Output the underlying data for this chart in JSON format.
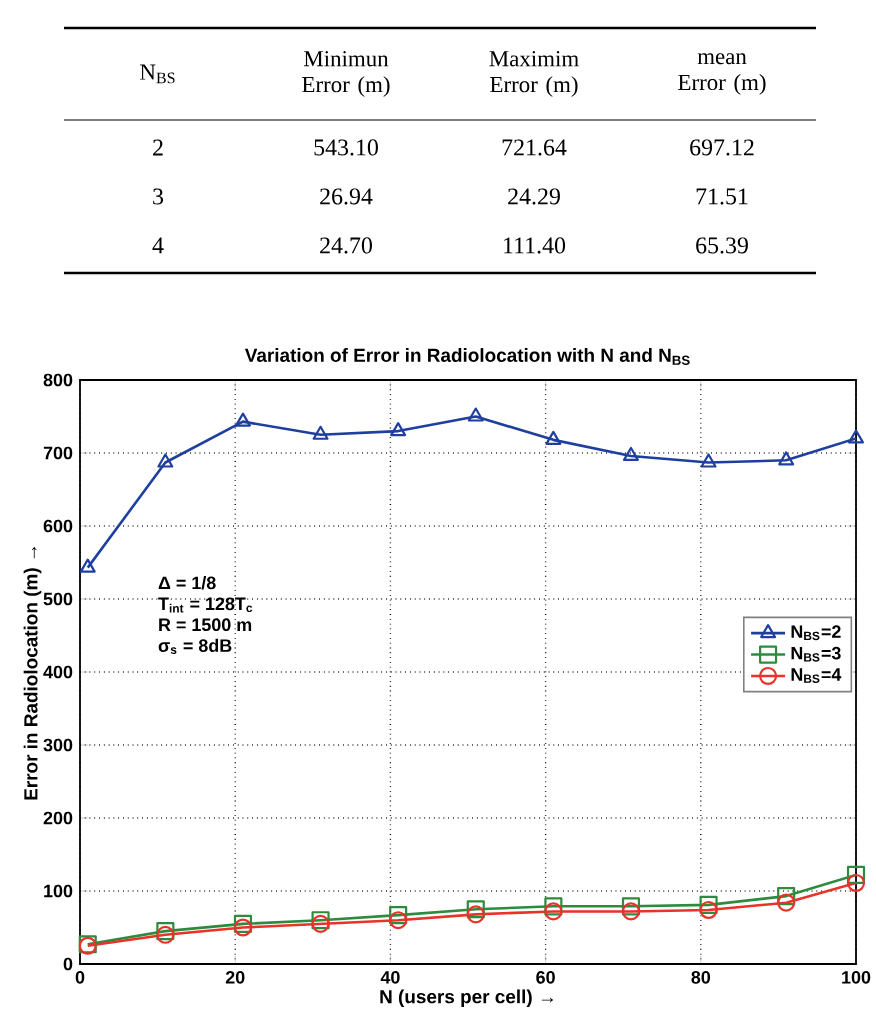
{
  "chart_data": [
    {
      "type": "other",
      "categories": [
        "N$_{BS}$",
        "Minimun Error (m)",
        "Maximim Error (m)",
        "mean Error (m)"
      ],
      "annotations": [
        "2",
        "543.10",
        "721.64",
        "697.12",
        "3",
        "26.94",
        "24.29",
        "71.51",
        "4",
        "24.70",
        "111.40",
        "65.39"
      ]
    },
    {
      "type": "line",
      "title": "Variation of Error in Radiolocation with N and N$_{BS}$",
      "xlabel": "N (users per cell) →",
      "ylabel": "Error in Radiolocation (m) →",
      "x": [
        1,
        11,
        21,
        31,
        41,
        51,
        61,
        71,
        81,
        91,
        100
      ],
      "series": [
        {
          "name": "N$_{BS}$=2",
          "color": "#1f3fa0",
          "marker": "triangle",
          "values": [
            543,
            687,
            743,
            725,
            730,
            750,
            718,
            696,
            687,
            690,
            720
          ]
        },
        {
          "name": "N$_{BS}$=3",
          "color": "#2e8b3e",
          "marker": "square",
          "values": [
            27,
            45,
            55,
            60,
            67,
            75,
            79,
            79,
            81,
            93,
            122
          ]
        },
        {
          "name": "N$_{BS}$=4",
          "color": "#e8322a",
          "marker": "circle",
          "values": [
            25,
            40,
            50,
            55,
            60,
            68,
            72,
            72,
            74,
            84,
            111
          ]
        }
      ],
      "xlim": [
        0,
        100
      ],
      "xticks": [
        0,
        20,
        40,
        60,
        80,
        100
      ],
      "ylim": [
        0,
        800
      ],
      "yticks": [
        0,
        100,
        200,
        300,
        400,
        500,
        600,
        700,
        800
      ],
      "grid": true,
      "legend": "right",
      "line_style": "solid",
      "annotations": [
        "Δ = 1/8",
        "T$_{int}$ = 128T$_{c}$",
        "R = 1500 m",
        "σ$_{s}$ = 8dB"
      ]
    }
  ]
}
